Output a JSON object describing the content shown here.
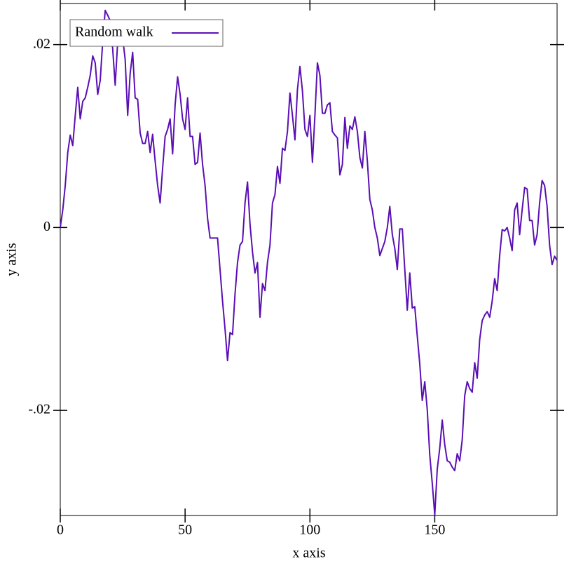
{
  "chart_data": {
    "type": "line",
    "x_label": "x axis",
    "y_label": "y axis",
    "xlim": [
      0,
      199
    ],
    "xticks": [
      0,
      50,
      100,
      150
    ],
    "ylim": [
      -0.0315,
      0.0245
    ],
    "yticks": [
      {
        "value": -0.02,
        "label": "-.02"
      },
      0,
      {
        "value": 0.02,
        "label": ".02"
      }
    ],
    "legend": "top-left",
    "grid": false,
    "series": [
      {
        "name": "Random walk",
        "color": "#5a0fb4",
        "values": [
          0,
          0.00192,
          0.0046,
          0.0082,
          0.01011,
          0.00897,
          0.01226,
          0.01533,
          0.01188,
          0.01379,
          0.01418,
          0.01533,
          0.01663,
          0.01877,
          0.01801,
          0.01456,
          0.01609,
          0.02031,
          0.02375,
          0.02322,
          0.02261,
          0.01954,
          0.01556,
          0.02031,
          0.02261,
          0.02069,
          0.01839,
          0.01226,
          0.01686,
          0.01916,
          0.01418,
          0.01402,
          0.01034,
          0.0092,
          0.0092,
          0.0105,
          0.0082,
          0.01019,
          0.00728,
          0.0046,
          0.00268,
          0.00651,
          0.00996,
          0.01073,
          0.01188,
          0.00805,
          0.01341,
          0.01648,
          0.01456,
          0.01188,
          0.01073,
          0.01418,
          0.00996,
          0.00996,
          0.0069,
          0.00713,
          0.01034,
          0.0069,
          0.0046,
          0.001,
          -0.00115,
          -0.00115,
          -0.00115,
          -0.00115,
          -0.0046,
          -0.00805,
          -0.01111,
          -0.01456,
          -0.01149,
          -0.01172,
          -0.00728,
          -0.00383,
          -0.00192,
          -0.00153,
          0.00268,
          0.00498,
          0.00038,
          -0.00268,
          -0.00498,
          -0.00383,
          -0.00981,
          -0.00613,
          -0.0069,
          -0.00383,
          -0.00192,
          0.00268,
          0.0036,
          0.00667,
          0.00483,
          0.00866,
          0.00843,
          0.0105,
          0.01471,
          0.01226,
          0.00958,
          0.01509,
          0.01762,
          0.01494,
          0.01073,
          0.00996,
          0.01226,
          0.00713,
          0.01226,
          0.01801,
          0.01663,
          0.01249,
          0.01249,
          0.01341,
          0.01364,
          0.0105,
          0.01011,
          0.00981,
          0.00575,
          0.0069,
          0.01203,
          0.00866,
          0.01111,
          0.01073,
          0.01211,
          0.0105,
          0.00766,
          0.00651,
          0.0105,
          0.00728,
          0.00307,
          0.00192,
          0,
          -0.00115,
          -0.00307,
          -0.0023,
          -0.00153,
          0,
          0.0023,
          -0.00077,
          -0.0023,
          -0.0046,
          -0.00015,
          -0.00015,
          -0.0046,
          -0.00904,
          -0.00498,
          -0.00881,
          -0.00866,
          -0.01188,
          -0.01494,
          -0.01893,
          -0.01686,
          -0.01992,
          -0.0249,
          -0.02797,
          -0.03142,
          -0.02644,
          -0.02414,
          -0.02107,
          -0.02375,
          -0.02552,
          -0.02567,
          -0.02621,
          -0.02659,
          -0.02475,
          -0.02552,
          -0.02322,
          -0.01839,
          -0.01686,
          -0.01762,
          -0.01801,
          -0.01479,
          -0.01648,
          -0.01226,
          -0.01019,
          -0.00958,
          -0.0092,
          -0.00981,
          -0.00805,
          -0.00559,
          -0.0069,
          -0.00307,
          -0.00023,
          -0.00038,
          0,
          -0.00115,
          -0.00253,
          0.00192,
          0.00268,
          -0.00077,
          0.00192,
          0.00437,
          0.00421,
          0.00077,
          0.00077,
          -0.00192,
          -0.00077,
          0.00268,
          0.00513,
          0.0046,
          0.0023,
          -0.00192,
          -0.00406,
          -0.00314,
          -0.0036
        ]
      }
    ]
  }
}
